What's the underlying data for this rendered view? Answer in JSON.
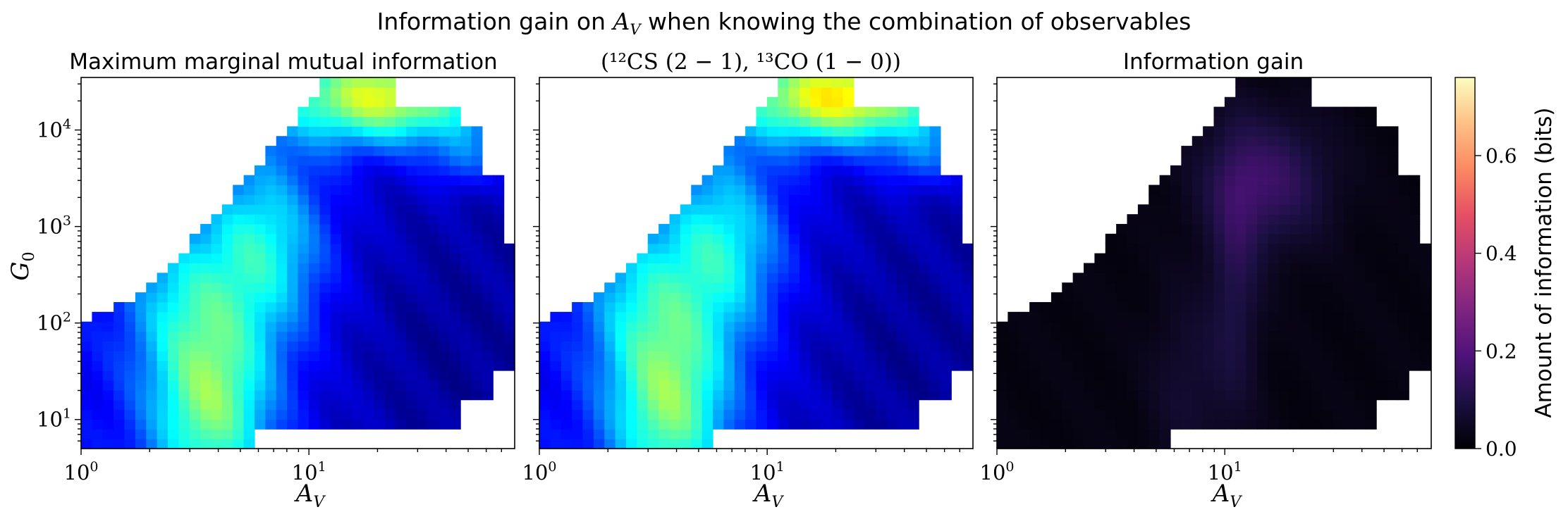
{
  "figure": {
    "suptitle_prefix": "Information gain on ",
    "suptitle_var": "A",
    "suptitle_sub": "V",
    "suptitle_suffix": " when knowing the combination of observables"
  },
  "panels": [
    {
      "title": "Maximum marginal mutual information",
      "xlabel_var": "A",
      "xlabel_sub": "V",
      "ylabel_var": "G",
      "ylabel_sub": "0",
      "colormap": "jet"
    },
    {
      "title": "(¹²CS (2 − 1), ¹³CO (1 − 0))",
      "xlabel_var": "A",
      "xlabel_sub": "V",
      "colormap": "jet"
    },
    {
      "title": "Information gain",
      "xlabel_var": "A",
      "xlabel_sub": "V",
      "colormap": "magma"
    }
  ],
  "axes": {
    "x_ticks": [
      {
        "base": "10",
        "exp": "0",
        "value": 1
      },
      {
        "base": "10",
        "exp": "1",
        "value": 10
      }
    ],
    "y_ticks": [
      {
        "base": "10",
        "exp": "1",
        "value": 10
      },
      {
        "base": "10",
        "exp": "2",
        "value": 100
      },
      {
        "base": "10",
        "exp": "3",
        "value": 1000
      },
      {
        "base": "10",
        "exp": "4",
        "value": 10000
      }
    ]
  },
  "colorbar": {
    "label": "Amount of information (bits)",
    "ticks": [
      "0.0",
      "0.2",
      "0.4",
      "0.6"
    ],
    "tick_values": [
      0.0,
      0.2,
      0.4,
      0.6
    ],
    "range": [
      0.0,
      0.76
    ],
    "colormap": "magma"
  },
  "chart_data": {
    "type": "heatmap",
    "x_scale": "log",
    "y_scale": "log",
    "xlim": [
      1,
      80
    ],
    "ylim": [
      5,
      35000
    ],
    "x_variable": "A_V",
    "y_variable": "G_0",
    "value_range": [
      0.0,
      0.76
    ],
    "grid": false,
    "series": [
      {
        "panel": "Maximum marginal mutual information",
        "colormap": "jet",
        "peak": 0.72,
        "peak_at": {
          "A_V": 15,
          "G_0": 25000
        }
      },
      {
        "panel": "(12CS(2-1), 13CO(1-0))",
        "colormap": "jet",
        "peak": 0.75,
        "peak_at": {
          "A_V": 15,
          "G_0": 25000
        }
      },
      {
        "panel": "Information gain",
        "colormap": "magma",
        "peak": 0.2,
        "peak_at": {
          "A_V": 14,
          "G_0": 3000
        }
      }
    ]
  }
}
